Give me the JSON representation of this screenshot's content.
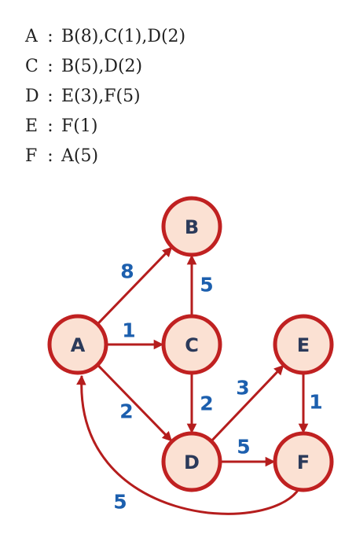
{
  "adjacency": [
    {
      "node": "A",
      "sep": ":",
      "edges": "B(8),C(1),D(2)"
    },
    {
      "node": "C",
      "sep": ":",
      "edges": "B(5),D(2)"
    },
    {
      "node": "D",
      "sep": ":",
      "edges": "E(3),F(5)"
    },
    {
      "node": "E",
      "sep": ":",
      "edges": "F(1)"
    },
    {
      "node": "F",
      "sep": ":",
      "edges": "A(5)"
    }
  ],
  "graph": {
    "colors": {
      "edge": "#b51d1d",
      "node_fill": "#fbe1d3",
      "node_stroke": "#c02121",
      "node_text": "#2b3a5a",
      "weight_text": "#1c5fae"
    },
    "nodes": [
      {
        "id": "A",
        "label": "A"
      },
      {
        "id": "B",
        "label": "B"
      },
      {
        "id": "C",
        "label": "C"
      },
      {
        "id": "D",
        "label": "D"
      },
      {
        "id": "E",
        "label": "E"
      },
      {
        "id": "F",
        "label": "F"
      }
    ],
    "edges": [
      {
        "from": "A",
        "to": "B",
        "weight": "8"
      },
      {
        "from": "A",
        "to": "C",
        "weight": "1"
      },
      {
        "from": "A",
        "to": "D",
        "weight": "2"
      },
      {
        "from": "C",
        "to": "B",
        "weight": "5"
      },
      {
        "from": "C",
        "to": "D",
        "weight": "2"
      },
      {
        "from": "D",
        "to": "E",
        "weight": "3"
      },
      {
        "from": "D",
        "to": "F",
        "weight": "5"
      },
      {
        "from": "E",
        "to": "F",
        "weight": "1"
      },
      {
        "from": "F",
        "to": "A",
        "weight": "5"
      }
    ]
  }
}
